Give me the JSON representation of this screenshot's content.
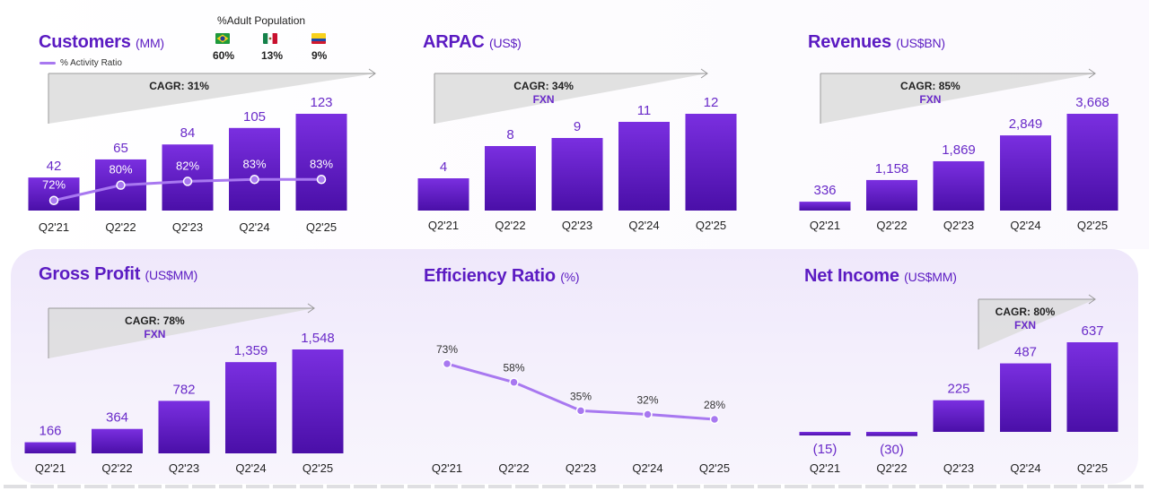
{
  "colors": {
    "bar_top": "#7a2fe0",
    "bar_bottom": "#4a0fa8",
    "line": "#a878f0",
    "arrow_fill": "#dcdcdc",
    "title": "#5b1bc2"
  },
  "legend": {
    "activity": "% Activity Ratio"
  },
  "adult_population": {
    "title": "%Adult Population",
    "items": [
      {
        "country_icon": "brazil-flag-icon",
        "value": "60%"
      },
      {
        "country_icon": "mexico-flag-icon",
        "value": "13%"
      },
      {
        "country_icon": "colombia-flag-icon",
        "value": "9%"
      }
    ]
  },
  "chart_data": [
    {
      "id": "customers",
      "type": "bar",
      "title": "Customers",
      "unit": "(MM)",
      "categories": [
        "Q2'21",
        "Q2'22",
        "Q2'23",
        "Q2'24",
        "Q2'25"
      ],
      "values": [
        42,
        65,
        84,
        105,
        123
      ],
      "labels": [
        "42",
        "65",
        "84",
        "105",
        "123"
      ],
      "line_series": {
        "name": "% Activity Ratio",
        "values": [
          72,
          80,
          82,
          83,
          83
        ],
        "labels": [
          "72%",
          "80%",
          "82%",
          "83%",
          "83%"
        ]
      },
      "cagr": "CAGR: 31%",
      "fxn": ""
    },
    {
      "id": "arpac",
      "type": "bar",
      "title": "ARPAC",
      "unit": "(US$)",
      "categories": [
        "Q2'21",
        "Q2'22",
        "Q2'23",
        "Q2'24",
        "Q2'25"
      ],
      "values": [
        4,
        8,
        9,
        11,
        12
      ],
      "labels": [
        "4",
        "8",
        "9",
        "11",
        "12"
      ],
      "cagr": "CAGR: 34%",
      "fxn": "FXN"
    },
    {
      "id": "revenues",
      "type": "bar",
      "title": "Revenues",
      "unit": "(US$BN)",
      "categories": [
        "Q2'21",
        "Q2'22",
        "Q2'23",
        "Q2'24",
        "Q2'25"
      ],
      "values": [
        336,
        1158,
        1869,
        2849,
        3668
      ],
      "labels": [
        "336",
        "1,158",
        "1,869",
        "2,849",
        "3,668"
      ],
      "cagr": "CAGR: 85%",
      "fxn": "FXN"
    },
    {
      "id": "gross-profit",
      "type": "bar",
      "title": "Gross Profit",
      "unit": "(US$MM)",
      "categories": [
        "Q2'21",
        "Q2'22",
        "Q2'23",
        "Q2'24",
        "Q2'25"
      ],
      "values": [
        166,
        364,
        782,
        1359,
        1548
      ],
      "labels": [
        "166",
        "364",
        "782",
        "1,359",
        "1,548"
      ],
      "cagr": "CAGR: 78%",
      "fxn": "FXN"
    },
    {
      "id": "efficiency-ratio",
      "type": "line",
      "title": "Efficiency Ratio",
      "unit": "(%)",
      "categories": [
        "Q2'21",
        "Q2'22",
        "Q2'23",
        "Q2'24",
        "Q2'25"
      ],
      "values": [
        73,
        58,
        35,
        32,
        28
      ],
      "labels": [
        "73%",
        "58%",
        "35%",
        "32%",
        "28%"
      ],
      "cagr": "",
      "fxn": ""
    },
    {
      "id": "net-income",
      "type": "bar",
      "title": "Net Income",
      "unit": "(US$MM)",
      "categories": [
        "Q2'21",
        "Q2'22",
        "Q2'23",
        "Q2'24",
        "Q2'25"
      ],
      "values": [
        -15,
        -30,
        225,
        487,
        637
      ],
      "labels": [
        "(15)",
        "(30)",
        "225",
        "487",
        "637"
      ],
      "cagr": "CAGR: 80%",
      "fxn": "FXN"
    }
  ]
}
